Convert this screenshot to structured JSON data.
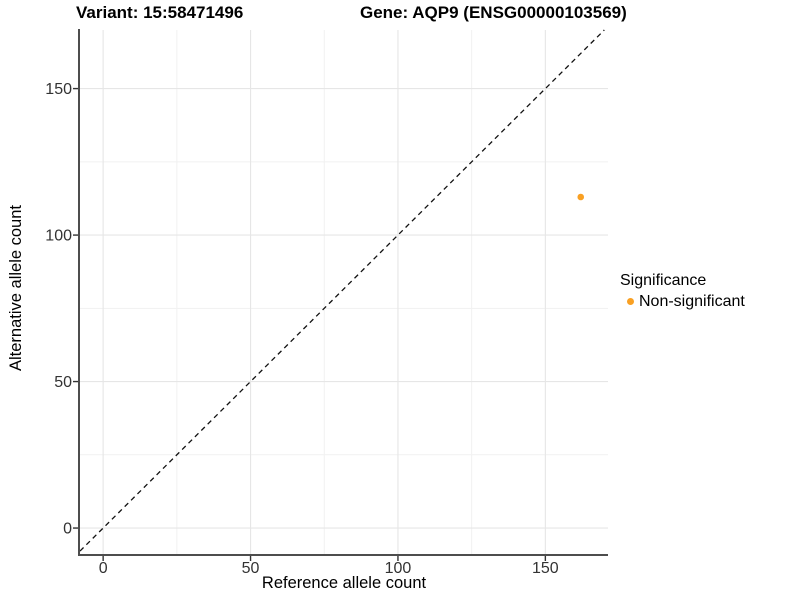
{
  "titles": {
    "variant": "Variant: 15:58471496",
    "gene": "Gene: AQP9 (ENSG00000103569)"
  },
  "chart_data": {
    "type": "scatter",
    "title_left": "Variant: 15:58471496",
    "title_right": "Gene: AQP9 (ENSG00000103569)",
    "xlabel": "Reference allele count",
    "ylabel": "Alternative allele count",
    "xlim": [
      -7.85,
      171.25
    ],
    "ylim": [
      -9.2,
      170.0
    ],
    "x_major_ticks": [
      0,
      50,
      100,
      150
    ],
    "y_major_ticks": [
      0,
      50,
      100,
      150
    ],
    "x_minor_ticks": [
      25,
      75,
      125
    ],
    "y_minor_ticks": [
      25,
      75,
      125
    ],
    "grid": true,
    "identity_line": {
      "style": "dashed",
      "equation": "y = x"
    },
    "series": [
      {
        "name": "Non-significant",
        "color": "#F9A023",
        "points": [
          {
            "x": 162,
            "y": 113
          }
        ]
      }
    ],
    "legend": {
      "position": "right",
      "title": "Significance",
      "items": [
        {
          "label": "Non-significant",
          "color": "#F9A023"
        }
      ]
    }
  },
  "colors": {
    "background": "#ffffff",
    "point_orange": "#F9A023",
    "grid_major": "#e6e6e6",
    "grid_minor": "#f1f1f1",
    "axis_line": "#4d4d4d",
    "tick_mark": "#333333",
    "tick_label": "#333333",
    "identity_line": "#111111",
    "title_text": "#000000"
  }
}
